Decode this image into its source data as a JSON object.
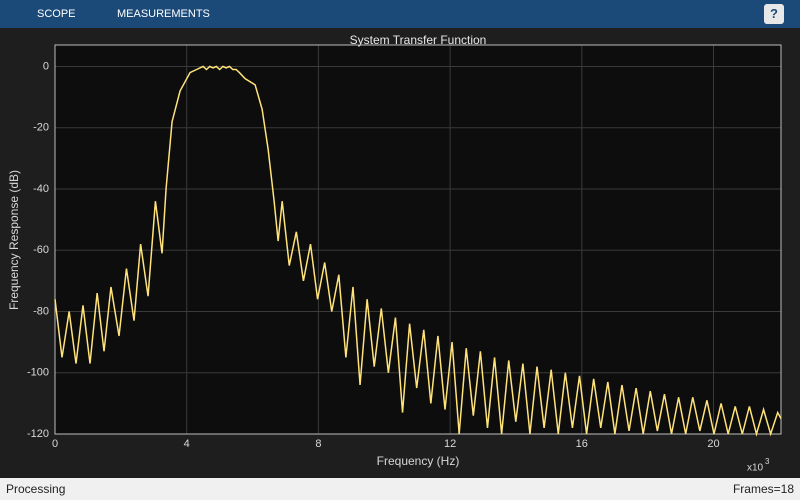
{
  "ui": {
    "tabs": [
      "SCOPE",
      "MEASUREMENTS"
    ],
    "help": "?",
    "status": "Processing",
    "frames": "Frames=18"
  },
  "chart_data": {
    "type": "line",
    "title": "System Transfer Function",
    "xlabel": "Frequency (Hz)",
    "ylabel": "Frequency Response (dB)",
    "x_multiplier_base": "x10",
    "x_multiplier_exponent": "3",
    "color": "#ffe37a",
    "grid": true,
    "xlim": [
      0,
      22050
    ],
    "ylim": [
      -120,
      7
    ],
    "xticks": [
      {
        "value": 0,
        "label": "0"
      },
      {
        "value": 4000,
        "label": "4"
      },
      {
        "value": 8000,
        "label": "8"
      },
      {
        "value": 12000,
        "label": "12"
      },
      {
        "value": 16000,
        "label": "16"
      },
      {
        "value": 20000,
        "label": "20"
      }
    ],
    "yticks": [
      0,
      -20,
      -40,
      -60,
      -80,
      -100,
      -120
    ],
    "x": [
      0,
      213,
      430,
      638,
      850,
      1063,
      1280,
      1489,
      1700,
      1945,
      2170,
      2400,
      2600,
      2826,
      3050,
      3251,
      3373,
      3556,
      3799,
      4103,
      4300,
      4500,
      4600,
      4700,
      4800,
      4900,
      5000,
      5100,
      5200,
      5300,
      5400,
      5500,
      5600,
      5774,
      6078,
      6291,
      6473,
      6655,
      6777,
      6900,
      7115,
      7330,
      7545,
      7760,
      7975,
      8190,
      8405,
      8620,
      8835,
      9050,
      9265,
      9480,
      9695,
      9910,
      10125,
      10340,
      10555,
      10770,
      10985,
      11200,
      11415,
      11630,
      11845,
      12060,
      12275,
      12490,
      12705,
      12920,
      13135,
      13350,
      13565,
      13780,
      13995,
      14210,
      14425,
      14640,
      14855,
      15070,
      15285,
      15500,
      15715,
      15930,
      16145,
      16360,
      16575,
      16790,
      17005,
      17220,
      17435,
      17650,
      17865,
      18080,
      18295,
      18510,
      18725,
      18940,
      19155,
      19370,
      19585,
      19800,
      20015,
      20230,
      20445,
      20660,
      20875,
      21090,
      21305,
      21520,
      21735,
      21950,
      22050
    ],
    "values": [
      -76,
      -95,
      -80,
      -97,
      -78,
      -97,
      -74,
      -93,
      -72,
      -88,
      -66,
      -83,
      -58,
      -75,
      -44,
      -61,
      -40,
      -18,
      -8,
      -2,
      -1,
      0,
      -1,
      0,
      -0.5,
      0,
      -1,
      0,
      -0.5,
      0,
      -1,
      -1,
      -2,
      -4,
      -6,
      -14,
      -27,
      -44,
      -57,
      -44,
      -65,
      -54,
      -70,
      -58,
      -76,
      -64,
      -80,
      -68,
      -95,
      -72,
      -104,
      -76,
      -98,
      -79,
      -100,
      -82,
      -113,
      -84,
      -105,
      -86,
      -110,
      -88,
      -112,
      -90,
      -120,
      -92,
      -114,
      -93,
      -118,
      -95,
      -120,
      -96,
      -116,
      -97,
      -120,
      -98,
      -118,
      -99,
      -120,
      -100,
      -118,
      -101,
      -120,
      -102,
      -118,
      -103,
      -120,
      -104,
      -119,
      -105,
      -120,
      -106,
      -119,
      -107,
      -120,
      -108,
      -120,
      -108,
      -119,
      -109,
      -120,
      -110,
      -120,
      -111,
      -120,
      -111,
      -120,
      -112,
      -120,
      -113,
      -115
    ]
  }
}
